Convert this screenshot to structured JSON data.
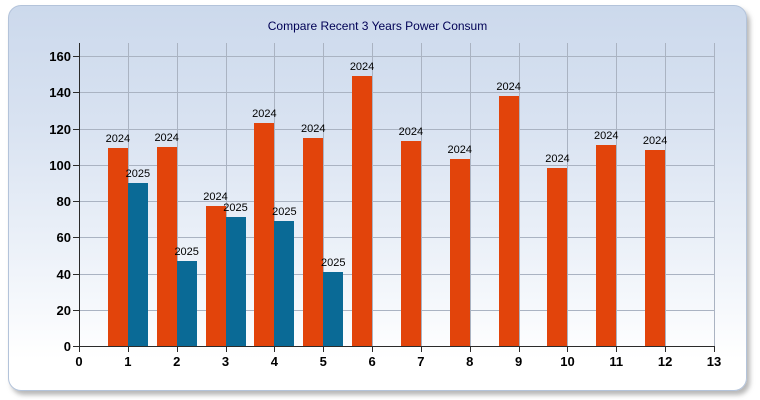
{
  "panel": {
    "title": "Compare Recent 3 Years Power Consum"
  },
  "colors": {
    "series_2024": "#e2440b",
    "series_2025": "#0a6a96",
    "grid": "#aab3c2",
    "axis": "#2a2a2a",
    "title_text": "#000055",
    "panel_gradient_top": "#ccd9ec",
    "panel_gradient_bottom": "#ffffff"
  },
  "chart_data": {
    "type": "bar",
    "title": "Compare Recent 3 Years Power Consum",
    "xlabel": "",
    "ylabel": "",
    "x": [
      1,
      2,
      3,
      4,
      5,
      6,
      7,
      8,
      9,
      10,
      11,
      12
    ],
    "series": [
      {
        "name": "2024",
        "color": "#e2440b",
        "values": [
          109,
          110,
          77,
          123,
          115,
          149,
          113,
          103,
          138,
          98,
          111,
          108
        ]
      },
      {
        "name": "2025",
        "color": "#0a6a96",
        "values": [
          90,
          47,
          71,
          69,
          41,
          null,
          null,
          null,
          null,
          null,
          null,
          null
        ]
      }
    ],
    "xlim": [
      0,
      13
    ],
    "ylim": [
      0,
      160
    ],
    "x_ticks": [
      0,
      1,
      2,
      3,
      4,
      5,
      6,
      7,
      8,
      9,
      10,
      11,
      12,
      13
    ],
    "y_ticks": [
      0,
      20,
      40,
      60,
      80,
      100,
      120,
      140,
      160
    ],
    "grid": true,
    "legend_position": "none",
    "bar_label_style": "series name above each bar"
  }
}
